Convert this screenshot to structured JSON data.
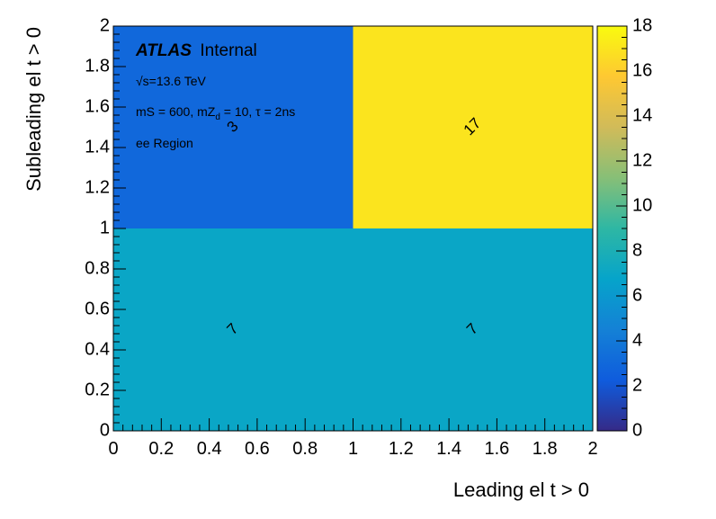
{
  "chart_data": {
    "type": "heatmap",
    "xlabel": "Leading el t > 0",
    "ylabel": "Subleading el t > 0",
    "xlim": [
      0,
      2
    ],
    "ylim": [
      0,
      2
    ],
    "x_bin_edges": [
      0,
      1,
      2
    ],
    "y_bin_edges": [
      0,
      1,
      2
    ],
    "cells": [
      {
        "x": [
          0,
          1
        ],
        "y": [
          0,
          1
        ],
        "value": 7,
        "label": "7"
      },
      {
        "x": [
          1,
          2
        ],
        "y": [
          0,
          1
        ],
        "value": 7,
        "label": "7"
      },
      {
        "x": [
          0,
          1
        ],
        "y": [
          1,
          2
        ],
        "value": 3,
        "label": "3"
      },
      {
        "x": [
          1,
          2
        ],
        "y": [
          1,
          2
        ],
        "value": 17,
        "label": "17"
      }
    ],
    "x_ticks": [
      "0",
      "0.2",
      "0.4",
      "0.6",
      "0.8",
      "1",
      "1.2",
      "1.4",
      "1.6",
      "1.8",
      "2"
    ],
    "y_ticks": [
      "0",
      "0.2",
      "0.4",
      "0.6",
      "0.8",
      "1",
      "1.2",
      "1.4",
      "1.6",
      "1.8",
      "2"
    ],
    "colorbar": {
      "min": 0,
      "max": 18,
      "ticks": [
        "0",
        "2",
        "4",
        "6",
        "8",
        "10",
        "12",
        "14",
        "16",
        "18"
      ],
      "palette": [
        "#352a87",
        "#0f5cdd",
        "#1481d6",
        "#06a4ca",
        "#2eb7a4",
        "#87bf77",
        "#d1bb59",
        "#fec832",
        "#f9fb0e"
      ]
    },
    "annotations": {
      "experiment": "ATLAS",
      "status": "Internal",
      "energy": "√s=13.6 TeV",
      "model": "mS = 600, mZ",
      "model_sub": "d",
      "model_rest": " = 10, τ = 2ns",
      "region": "ee Region"
    }
  }
}
